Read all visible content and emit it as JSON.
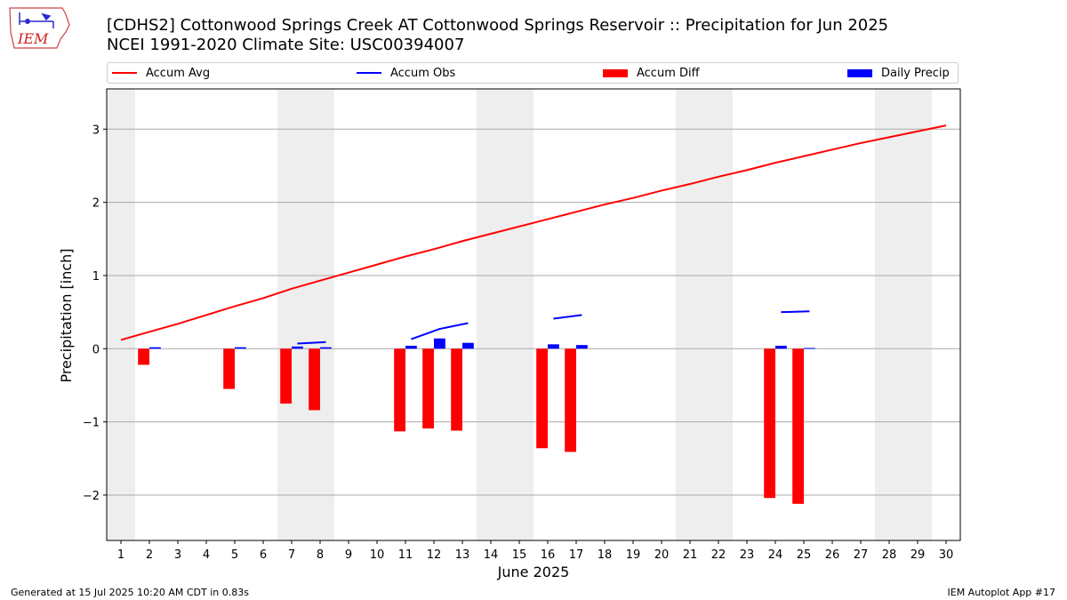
{
  "header": {
    "title_line1": "[CDHS2] Cottonwood Springs Creek  AT Cottonwood Springs Reservoir :: Precipitation for Jun 2025",
    "title_line2": "NCEI 1991-2020 Climate Site: USC00394007",
    "logo_text": "IEM"
  },
  "legend": {
    "accum_avg": "Accum Avg",
    "accum_obs": "Accum Obs",
    "accum_diff": "Accum Diff",
    "daily_precip": "Daily Precip"
  },
  "colors": {
    "accum_avg": "#ff0000",
    "accum_obs": "#0000ff",
    "accum_diff": "#ff0000",
    "daily_precip": "#0000ff",
    "weekend_shade": "#eeeeee",
    "grid": "#aaaaaa"
  },
  "footer": {
    "generated": "Generated at 15 Jul 2025 10:20 AM CDT in 0.83s",
    "app": "IEM Autoplot App #17"
  },
  "chart_data": {
    "type": "bar",
    "title": "[CDHS2] Cottonwood Springs Creek  AT Cottonwood Springs Reservoir :: Precipitation for Jun 2025",
    "xlabel": "June 2025",
    "ylabel": "Precipitation [inch]",
    "xlim": [
      0.5,
      30.5
    ],
    "ylim": [
      -2.62,
      3.55
    ],
    "yticks": [
      -2,
      -1,
      0,
      1,
      2,
      3
    ],
    "ytick_labels": [
      "−2",
      "−1",
      "0",
      "1",
      "2",
      "3"
    ],
    "x": [
      1,
      2,
      3,
      4,
      5,
      6,
      7,
      8,
      9,
      10,
      11,
      12,
      13,
      14,
      15,
      16,
      17,
      18,
      19,
      20,
      21,
      22,
      23,
      24,
      25,
      26,
      27,
      28,
      29,
      30
    ],
    "weekend_spans": [
      [
        0.5,
        1.5
      ],
      [
        6.5,
        8.5
      ],
      [
        13.5,
        15.5
      ],
      [
        20.5,
        22.5
      ],
      [
        27.5,
        29.5
      ]
    ],
    "grid": true,
    "legend_position": "top",
    "series": [
      {
        "name": "Accum Avg",
        "type": "line",
        "values": [
          0.12,
          0.23,
          0.34,
          0.46,
          0.58,
          0.69,
          0.82,
          0.93,
          1.04,
          1.15,
          1.26,
          1.36,
          1.47,
          1.57,
          1.67,
          1.77,
          1.87,
          1.97,
          2.06,
          2.16,
          2.25,
          2.35,
          2.44,
          2.54,
          2.63,
          2.72,
          2.81,
          2.89,
          2.97,
          3.05
        ]
      },
      {
        "name": "Accum Obs",
        "type": "line",
        "offset": 0.2,
        "segments": [
          {
            "x": [
              7,
              8
            ],
            "values": [
              0.07,
              0.09
            ]
          },
          {
            "x": [
              11,
              12,
              13
            ],
            "values": [
              0.13,
              0.27,
              0.35
            ]
          },
          {
            "x": [
              16,
              17
            ],
            "values": [
              0.41,
              0.46
            ]
          },
          {
            "x": [
              24,
              25
            ],
            "values": [
              0.5,
              0.51
            ]
          }
        ]
      },
      {
        "name": "Accum Diff",
        "type": "bar",
        "offset": -0.2,
        "x": [
          2,
          5,
          7,
          8,
          11,
          12,
          13,
          16,
          17,
          24,
          25
        ],
        "values": [
          -0.22,
          -0.55,
          -0.75,
          -0.84,
          -1.13,
          -1.09,
          -1.12,
          -1.36,
          -1.41,
          -2.04,
          -2.12
        ]
      },
      {
        "name": "Daily Precip",
        "type": "bar",
        "offset": 0.2,
        "x": [
          2,
          5,
          7,
          8,
          11,
          12,
          13,
          16,
          17,
          24,
          25
        ],
        "values": [
          0.02,
          0.02,
          0.03,
          0.02,
          0.04,
          0.14,
          0.08,
          0.06,
          0.05,
          0.04,
          0.01
        ]
      }
    ]
  }
}
